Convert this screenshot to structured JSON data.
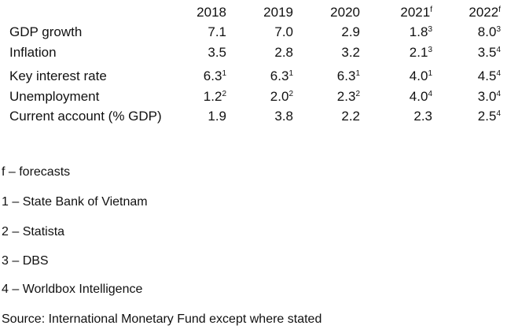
{
  "table": {
    "years": [
      {
        "label": "2018",
        "sup": ""
      },
      {
        "label": "2019",
        "sup": ""
      },
      {
        "label": "2020",
        "sup": ""
      },
      {
        "label": "2021",
        "sup": "f"
      },
      {
        "label": "2022",
        "sup": "f"
      }
    ],
    "rows": [
      {
        "label": "GDP growth",
        "cells": [
          {
            "v": "7.1",
            "s": ""
          },
          {
            "v": "7.0",
            "s": ""
          },
          {
            "v": "2.9",
            "s": ""
          },
          {
            "v": "1.8",
            "s": "3"
          },
          {
            "v": "8.0",
            "s": "3"
          }
        ]
      },
      {
        "label": "Inflation",
        "cells": [
          {
            "v": "3.5",
            "s": ""
          },
          {
            "v": "2.8",
            "s": ""
          },
          {
            "v": "3.2",
            "s": ""
          },
          {
            "v": "2.1",
            "s": "3"
          },
          {
            "v": "3.5",
            "s": "4"
          }
        ]
      },
      {
        "label": "Key interest rate",
        "cells": [
          {
            "v": "6.3",
            "s": "1"
          },
          {
            "v": "6.3",
            "s": "1"
          },
          {
            "v": "6.3",
            "s": "1"
          },
          {
            "v": "4.0",
            "s": "1"
          },
          {
            "v": "4.5",
            "s": "4"
          }
        ]
      },
      {
        "label": "Unemployment",
        "cells": [
          {
            "v": "1.2",
            "s": "2"
          },
          {
            "v": "2.0",
            "s": "2"
          },
          {
            "v": "2.3",
            "s": "2"
          },
          {
            "v": "4.0",
            "s": "4"
          },
          {
            "v": "3.0",
            "s": "4"
          }
        ]
      },
      {
        "label": "Current account (% GDP)",
        "cells": [
          {
            "v": "1.9",
            "s": ""
          },
          {
            "v": "3.8",
            "s": ""
          },
          {
            "v": "2.2",
            "s": ""
          },
          {
            "v": "2.3",
            "s": ""
          },
          {
            "v": "2.5",
            "s": "4"
          }
        ]
      }
    ]
  },
  "notes": [
    "f – forecasts",
    "1 – State Bank of Vietnam",
    "2 – Statista",
    "3 – DBS",
    "4 – Worldbox Intelligence"
  ],
  "source": "Source: International Monetary Fund except where stated"
}
